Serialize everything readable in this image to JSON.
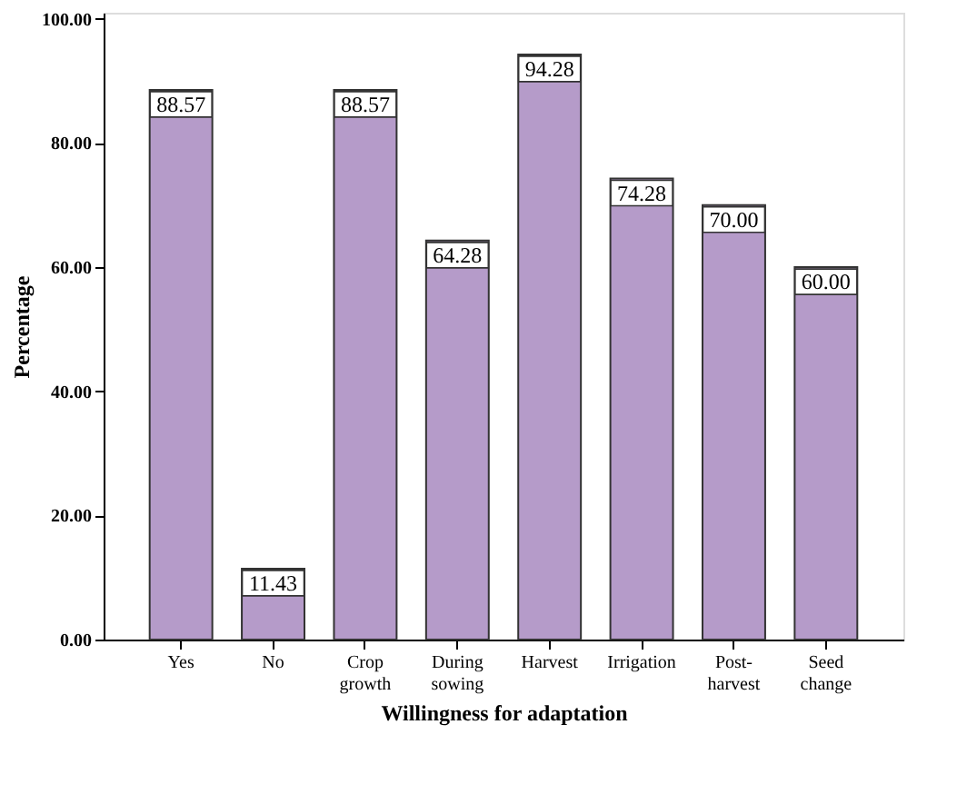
{
  "chart_data": {
    "type": "bar",
    "xlabel": "Willingness for adaptation",
    "ylabel": "Percentage",
    "categories": [
      "Yes",
      "No",
      "Crop growth",
      "During sowing",
      "Harvest",
      "Irrigation",
      "Post-harvest",
      "Seed change"
    ],
    "values": [
      88.57,
      11.43,
      88.57,
      64.28,
      94.28,
      74.28,
      70.0,
      60.0
    ],
    "value_labels": [
      "88.57",
      "11.43",
      "88.57",
      "64.28",
      "94.28",
      "74.28",
      "70.00",
      "60.00"
    ],
    "color": "#b59bc9",
    "ylim": [
      0,
      101
    ],
    "yticks": [
      {
        "value": 0,
        "label": "0.00"
      },
      {
        "value": 20,
        "label": "20.00"
      },
      {
        "value": 40,
        "label": "40.00"
      },
      {
        "value": 60,
        "label": "60.00"
      },
      {
        "value": 80,
        "label": "80.00"
      },
      {
        "value": 100,
        "label": "100.00"
      }
    ],
    "grid": false
  }
}
